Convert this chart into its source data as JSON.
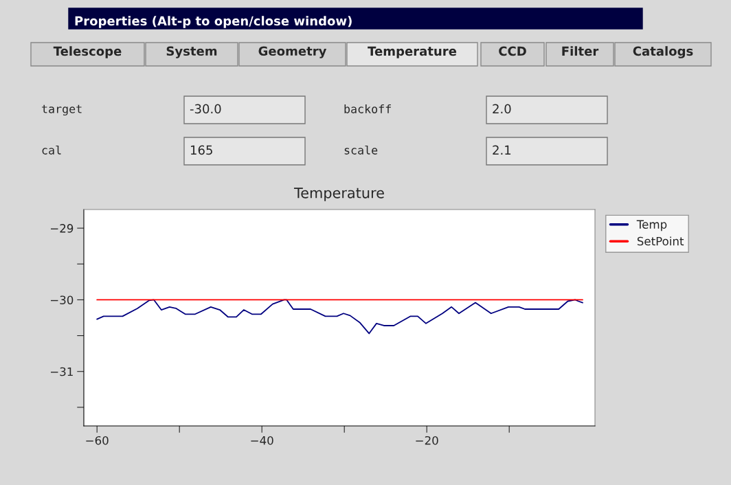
{
  "chart_data": {
    "type": "line",
    "title": "Temperature",
    "annotations": [
      "Properties (Alt-p to open/close window)",
      "Telescope",
      "System",
      "Geometry",
      "Temperature",
      "CCD",
      "Filter",
      "Catalogs",
      "target",
      "-30.0",
      "backoff",
      "2.0",
      "cal",
      "165",
      "scale",
      "2.1"
    ],
    "series": [
      {
        "name": "Temp",
        "color": "#000080",
        "x": [
          -60,
          -59.2,
          -56.9,
          -55.1,
          -53.7,
          -53.1,
          -52.2,
          -51.2,
          -50.4,
          -49.3,
          -48.1,
          -46.2,
          -45.1,
          -44.1,
          -43.1,
          -42.2,
          -41.2,
          -40.1,
          -38.7,
          -37.3,
          -37.0,
          -36.2,
          -34.1,
          -32.3,
          -30.9,
          -30.1,
          -29.3,
          -28.1,
          -27.0,
          -26.1,
          -25.2,
          -24.0,
          -22.0,
          -21.1,
          -20.1,
          -18.1,
          -17.0,
          -16.1,
          -14.1,
          -12.2,
          -10.1,
          -8.8,
          -8.1,
          -4.0,
          -2.9,
          -2.0,
          -1.6,
          -1.1
        ],
        "values": [
          -30.27,
          -30.23,
          -30.23,
          -30.12,
          -30.01,
          -30.0,
          -30.14,
          -30.1,
          -30.12,
          -30.2,
          -30.2,
          -30.1,
          -30.14,
          -30.24,
          -30.24,
          -30.14,
          -30.2,
          -30.2,
          -30.06,
          -30.0,
          -30.0,
          -30.13,
          -30.13,
          -30.23,
          -30.23,
          -30.19,
          -30.22,
          -30.32,
          -30.47,
          -30.33,
          -30.36,
          -30.36,
          -30.23,
          -30.23,
          -30.33,
          -30.19,
          -30.1,
          -30.19,
          -30.04,
          -30.19,
          -30.1,
          -30.1,
          -30.13,
          -30.13,
          -30.02,
          -30.0,
          -30.02,
          -30.04
        ]
      },
      {
        "name": "SetPoint",
        "color": "#ff0000",
        "x": [
          -60,
          -1.1
        ],
        "values": [
          -30,
          -30
        ]
      }
    ],
    "xlim": [
      -61.6,
      0.4
    ],
    "ylim": [
      -31.76,
      -28.74
    ],
    "xticks": [
      -60,
      {
        "value": -50,
        "label": null
      },
      -40,
      {
        "value": -30,
        "label": null
      },
      -20,
      {
        "value": -10,
        "label": null
      }
    ],
    "yticks": [
      -29,
      {
        "value": -29.5,
        "label": null
      },
      -30,
      {
        "value": -30.5,
        "label": null
      },
      -31,
      {
        "value": -31.5,
        "label": null
      }
    ],
    "grid": false,
    "legend": "top right",
    "marker": "none",
    "line_style": "solid"
  }
}
